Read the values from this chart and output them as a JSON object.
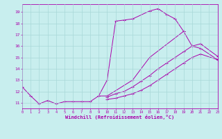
{
  "xlabel": "Windchill (Refroidissement éolien,°C)",
  "xlim": [
    0,
    23
  ],
  "ylim": [
    10.5,
    19.7
  ],
  "yticks": [
    11,
    12,
    13,
    14,
    15,
    16,
    17,
    18,
    19
  ],
  "xticks": [
    0,
    1,
    2,
    3,
    4,
    5,
    6,
    7,
    8,
    9,
    10,
    11,
    12,
    13,
    14,
    15,
    16,
    17,
    18,
    19,
    20,
    21,
    22,
    23
  ],
  "bg_color": "#c8eeee",
  "grid_color": "#a8d8d8",
  "line_color": "#aa00aa",
  "line1_x": [
    0,
    1,
    2,
    3,
    4,
    5,
    6,
    7,
    8,
    9,
    10,
    11,
    12,
    13,
    15,
    16,
    17,
    18,
    19
  ],
  "line1_y": [
    12.4,
    11.6,
    10.9,
    11.2,
    10.9,
    11.1,
    11.1,
    11.1,
    11.1,
    11.6,
    13.0,
    18.2,
    18.3,
    18.4,
    19.1,
    19.3,
    18.8,
    18.4,
    17.3
  ],
  "line2_x": [
    9,
    10,
    13,
    15,
    19,
    20,
    21,
    23
  ],
  "line2_y": [
    11.6,
    11.6,
    13.0,
    15.0,
    17.3,
    16.0,
    15.8,
    14.8
  ],
  "line3_x": [
    10,
    11,
    12,
    13,
    14,
    15,
    16,
    17,
    18,
    19,
    20,
    21,
    23
  ],
  "line3_y": [
    11.3,
    11.4,
    11.6,
    11.8,
    12.1,
    12.5,
    13.0,
    13.5,
    14.0,
    14.5,
    15.0,
    15.3,
    14.8
  ],
  "line4_x": [
    10,
    11,
    12,
    13,
    14,
    15,
    16,
    17,
    18,
    19,
    20,
    21,
    23
  ],
  "line4_y": [
    11.5,
    11.8,
    12.0,
    12.4,
    12.9,
    13.4,
    14.0,
    14.5,
    15.0,
    15.5,
    16.0,
    16.2,
    15.1
  ]
}
